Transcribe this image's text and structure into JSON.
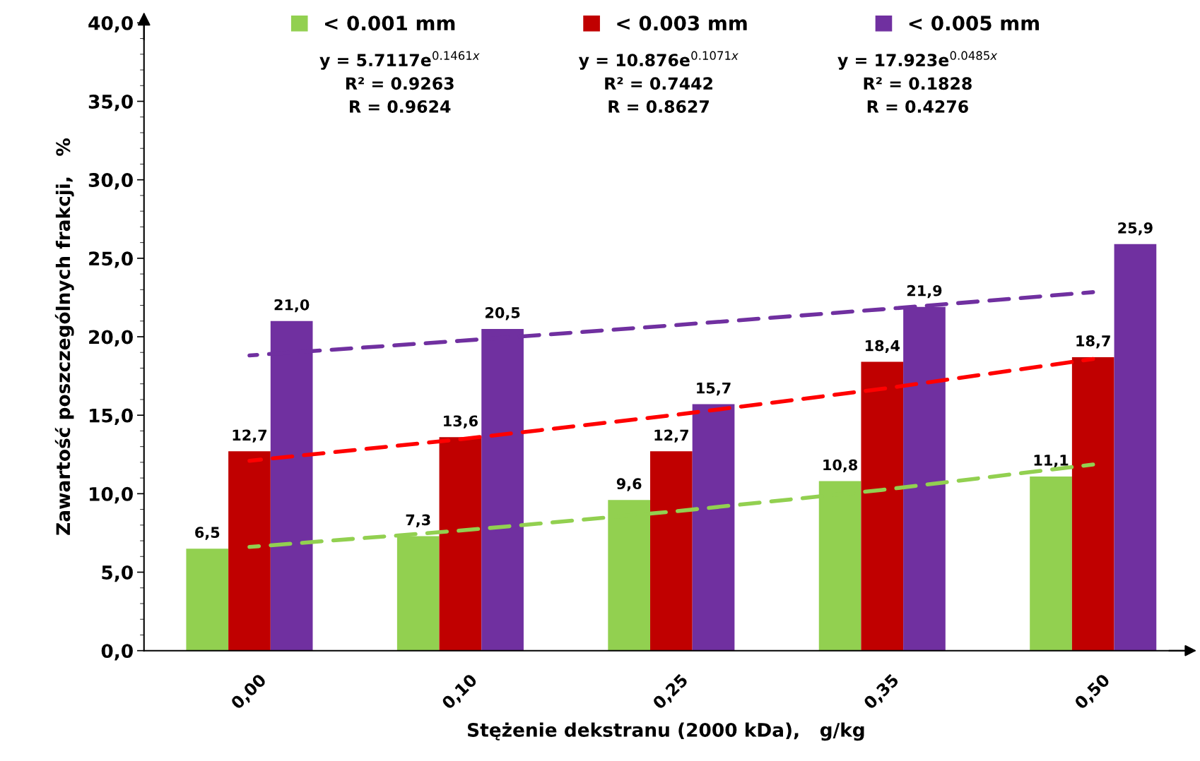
{
  "chart_data": {
    "type": "bar",
    "xlabel": "Stężenie dekstranu (2000 kDa),   g/kg",
    "ylabel": "Zawartość poszczególnych frakcji,   %",
    "categories": [
      "0,00",
      "0,10",
      "0,25",
      "0,35",
      "0,50"
    ],
    "series": [
      {
        "name": "< 0.001 mm",
        "color": "#92d050",
        "values": [
          6.5,
          7.3,
          9.6,
          10.8,
          11.1
        ],
        "value_labels": [
          "6,5",
          "7,3",
          "9,6",
          "10,8",
          "11,1"
        ]
      },
      {
        "name": "< 0.003 mm",
        "color": "#c00000",
        "values": [
          12.7,
          13.6,
          12.7,
          18.4,
          18.7
        ],
        "value_labels": [
          "12,7",
          "13,6",
          "12,7",
          "18,4",
          "18,7"
        ]
      },
      {
        "name": "< 0.005 mm",
        "color": "#7030a0",
        "values": [
          21.0,
          20.5,
          15.7,
          21.9,
          25.9
        ],
        "value_labels": [
          "21,0",
          "20,5",
          "15,7",
          "21,9",
          "25,9"
        ]
      },
      {
        "type": "line",
        "color": "#92d050",
        "line_style": "dashed",
        "x": [
          "0,00",
          "0,10",
          "0,25",
          "0,35",
          "0,50"
        ],
        "values": [
          6.61,
          7.65,
          8.85,
          10.24,
          11.86
        ]
      },
      {
        "type": "line",
        "color": "#ff0000",
        "line_style": "dashed",
        "x": [
          "0,00",
          "0,10",
          "0,25",
          "0,35",
          "0,50"
        ],
        "values": [
          12.1,
          13.47,
          14.99,
          16.68,
          18.58
        ]
      },
      {
        "type": "line",
        "color": "#7030a0",
        "line_style": "dashed",
        "x": [
          "0,00",
          "0,10",
          "0,25",
          "0,35",
          "0,50"
        ],
        "values": [
          18.81,
          19.74,
          20.72,
          21.75,
          22.84
        ]
      }
    ],
    "annotations": [
      "y = 5.7117e$^{0.1461x}$\nR² = 0.9263\nR = 0.9624",
      "y = 10.876e$^{0.1071x}$\nR² = 0.7442\nR = 0.8627",
      "y = 17.923e$^{0.0485x}$\nR² = 0.1828\nR = 0.4276"
    ],
    "ylim": [
      0,
      40
    ],
    "yticks": [
      {
        "value": 0,
        "label": "0,0"
      },
      {
        "value": 5,
        "label": "5,0"
      },
      {
        "value": 10,
        "label": "10,0"
      },
      {
        "value": 15,
        "label": "15,0"
      },
      {
        "value": 20,
        "label": "20,0"
      },
      {
        "value": 25,
        "label": "25,0"
      },
      {
        "value": 30,
        "label": "30,0"
      },
      {
        "value": 35,
        "label": "35,0"
      },
      {
        "value": 40,
        "label": "40,0"
      }
    ],
    "grid": false,
    "legend": "top"
  }
}
